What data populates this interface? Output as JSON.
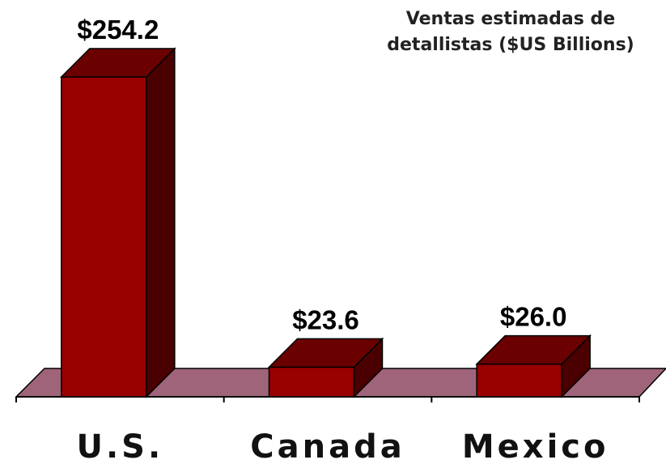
{
  "chart_data": {
    "type": "bar3d",
    "title": "Ventas estimadas de detallistas ($US Billions)",
    "categories": [
      "U.S.",
      "Canada",
      "Mexico"
    ],
    "values": [
      254.2,
      23.6,
      26.0
    ],
    "value_labels": [
      "$254.2",
      "$23.6",
      "$26.0"
    ],
    "color": "#990000"
  }
}
